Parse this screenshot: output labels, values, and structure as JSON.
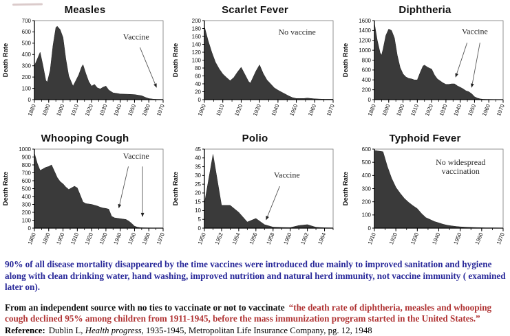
{
  "page": {
    "background": "#ffffff"
  },
  "decor": {
    "smudge_color": "rgba(175,140,140,0.45)"
  },
  "chart_colors": {
    "area_fill": "#3a3a3a",
    "axis": "#000000",
    "frame": "#777777",
    "annotation_text": "#2b2b2b",
    "arrow": "#555555"
  },
  "chart_data": [
    {
      "id": "measles",
      "type": "area",
      "title": "Measles",
      "ylabel": "Death Rate",
      "ylim": [
        0,
        700
      ],
      "ytick_step": 100,
      "x_range": [
        1880,
        1970
      ],
      "x_ticks": [
        1880,
        1890,
        1900,
        1910,
        1920,
        1930,
        1940,
        1950,
        1960,
        1970
      ],
      "x_minor_step": 5,
      "points": [
        [
          1880,
          300
        ],
        [
          1882,
          360
        ],
        [
          1884,
          420
        ],
        [
          1886,
          300
        ],
        [
          1888,
          170
        ],
        [
          1889,
          155
        ],
        [
          1891,
          260
        ],
        [
          1893,
          480
        ],
        [
          1895,
          640
        ],
        [
          1896,
          650
        ],
        [
          1898,
          620
        ],
        [
          1900,
          550
        ],
        [
          1902,
          360
        ],
        [
          1904,
          210
        ],
        [
          1906,
          150
        ],
        [
          1907,
          120
        ],
        [
          1909,
          170
        ],
        [
          1911,
          220
        ],
        [
          1913,
          290
        ],
        [
          1914,
          310
        ],
        [
          1916,
          230
        ],
        [
          1918,
          160
        ],
        [
          1920,
          120
        ],
        [
          1922,
          135
        ],
        [
          1924,
          105
        ],
        [
          1926,
          95
        ],
        [
          1928,
          110
        ],
        [
          1930,
          120
        ],
        [
          1932,
          85
        ],
        [
          1935,
          60
        ],
        [
          1938,
          55
        ],
        [
          1940,
          50
        ],
        [
          1945,
          48
        ],
        [
          1950,
          45
        ],
        [
          1955,
          35
        ],
        [
          1958,
          18
        ],
        [
          1960,
          10
        ],
        [
          1963,
          5
        ],
        [
          1965,
          3
        ],
        [
          1970,
          2
        ]
      ],
      "annotation": {
        "lines": [
          "Vaccine"
        ],
        "x": 0.79,
        "y": 0.24,
        "arrows": [
          {
            "x1": 0.82,
            "y1": 0.34,
            "x2": 0.95,
            "y2": 0.85
          }
        ]
      }
    },
    {
      "id": "scarlet-fever",
      "type": "area",
      "title": "Scarlet Fever",
      "ylabel": "Death Rate",
      "ylim": [
        0,
        200
      ],
      "ytick_step": 20,
      "x_range": [
        1900,
        1970
      ],
      "x_ticks": [
        1900,
        1910,
        1920,
        1930,
        1940,
        1950,
        1960,
        1970
      ],
      "x_minor_step": 5,
      "points": [
        [
          1900,
          185
        ],
        [
          1902,
          150
        ],
        [
          1904,
          120
        ],
        [
          1906,
          95
        ],
        [
          1908,
          78
        ],
        [
          1910,
          65
        ],
        [
          1912,
          56
        ],
        [
          1914,
          48
        ],
        [
          1916,
          56
        ],
        [
          1918,
          70
        ],
        [
          1920,
          82
        ],
        [
          1922,
          64
        ],
        [
          1924,
          46
        ],
        [
          1925,
          42
        ],
        [
          1926,
          52
        ],
        [
          1928,
          72
        ],
        [
          1930,
          88
        ],
        [
          1932,
          66
        ],
        [
          1934,
          50
        ],
        [
          1936,
          40
        ],
        [
          1938,
          30
        ],
        [
          1940,
          24
        ],
        [
          1942,
          19
        ],
        [
          1944,
          14
        ],
        [
          1946,
          9
        ],
        [
          1948,
          5
        ],
        [
          1950,
          3
        ],
        [
          1952,
          3
        ],
        [
          1954,
          3
        ],
        [
          1956,
          4
        ],
        [
          1958,
          3
        ],
        [
          1960,
          2
        ],
        [
          1965,
          1
        ],
        [
          1970,
          1
        ]
      ],
      "annotation": {
        "lines": [
          "No vaccine"
        ],
        "x": 0.72,
        "y": 0.18,
        "arrows": []
      }
    },
    {
      "id": "diphtheria",
      "type": "area",
      "title": "Diphtheria",
      "ylabel": "Death Rate",
      "ylim": [
        0,
        1600
      ],
      "ytick_step": 200,
      "x_range": [
        1880,
        1970
      ],
      "x_ticks": [
        1880,
        1890,
        1900,
        1910,
        1920,
        1930,
        1940,
        1950,
        1960,
        1970
      ],
      "x_minor_step": 5,
      "points": [
        [
          1880,
          1550
        ],
        [
          1882,
          1200
        ],
        [
          1884,
          950
        ],
        [
          1885,
          900
        ],
        [
          1886,
          1020
        ],
        [
          1888,
          1300
        ],
        [
          1890,
          1430
        ],
        [
          1892,
          1400
        ],
        [
          1894,
          1250
        ],
        [
          1896,
          900
        ],
        [
          1898,
          650
        ],
        [
          1900,
          520
        ],
        [
          1902,
          460
        ],
        [
          1904,
          430
        ],
        [
          1906,
          420
        ],
        [
          1908,
          400
        ],
        [
          1910,
          400
        ],
        [
          1912,
          550
        ],
        [
          1914,
          680
        ],
        [
          1915,
          700
        ],
        [
          1917,
          660
        ],
        [
          1919,
          630
        ],
        [
          1920,
          620
        ],
        [
          1922,
          500
        ],
        [
          1924,
          420
        ],
        [
          1926,
          380
        ],
        [
          1928,
          340
        ],
        [
          1930,
          310
        ],
        [
          1932,
          310
        ],
        [
          1934,
          320
        ],
        [
          1936,
          320
        ],
        [
          1938,
          280
        ],
        [
          1940,
          250
        ],
        [
          1942,
          220
        ],
        [
          1944,
          180
        ],
        [
          1946,
          160
        ],
        [
          1948,
          120
        ],
        [
          1950,
          60
        ],
        [
          1952,
          30
        ],
        [
          1954,
          15
        ],
        [
          1956,
          8
        ],
        [
          1960,
          5
        ],
        [
          1965,
          3
        ],
        [
          1970,
          2
        ]
      ],
      "annotation": {
        "lines": [
          "Vaccine"
        ],
        "x": 0.78,
        "y": 0.17,
        "arrows": [
          {
            "x1": 0.72,
            "y1": 0.28,
            "x2": 0.63,
            "y2": 0.72
          },
          {
            "x1": 0.82,
            "y1": 0.28,
            "x2": 0.755,
            "y2": 0.85
          }
        ]
      }
    },
    {
      "id": "whooping-cough",
      "type": "area",
      "title": "Whooping Cough",
      "ylabel": "Death Rate",
      "ylim": [
        0,
        1000
      ],
      "ytick_step": 100,
      "x_range": [
        1880,
        1970
      ],
      "x_ticks": [
        1880,
        1890,
        1900,
        1910,
        1920,
        1930,
        1940,
        1950,
        1960,
        1970
      ],
      "x_minor_step": 5,
      "points": [
        [
          1880,
          950
        ],
        [
          1882,
          820
        ],
        [
          1884,
          730
        ],
        [
          1886,
          750
        ],
        [
          1888,
          770
        ],
        [
          1890,
          780
        ],
        [
          1892,
          800
        ],
        [
          1894,
          720
        ],
        [
          1896,
          640
        ],
        [
          1898,
          590
        ],
        [
          1900,
          560
        ],
        [
          1902,
          520
        ],
        [
          1904,
          490
        ],
        [
          1906,
          510
        ],
        [
          1908,
          530
        ],
        [
          1910,
          510
        ],
        [
          1912,
          420
        ],
        [
          1914,
          330
        ],
        [
          1916,
          310
        ],
        [
          1918,
          305
        ],
        [
          1920,
          300
        ],
        [
          1922,
          290
        ],
        [
          1924,
          280
        ],
        [
          1926,
          265
        ],
        [
          1928,
          255
        ],
        [
          1930,
          250
        ],
        [
          1932,
          240
        ],
        [
          1934,
          150
        ],
        [
          1936,
          130
        ],
        [
          1938,
          125
        ],
        [
          1940,
          120
        ],
        [
          1942,
          115
        ],
        [
          1944,
          110
        ],
        [
          1946,
          90
        ],
        [
          1948,
          60
        ],
        [
          1950,
          25
        ],
        [
          1952,
          12
        ],
        [
          1954,
          6
        ],
        [
          1956,
          4
        ],
        [
          1960,
          3
        ],
        [
          1965,
          2
        ],
        [
          1970,
          1
        ]
      ],
      "annotation": {
        "lines": [
          "Vaccine"
        ],
        "x": 0.79,
        "y": 0.12,
        "arrows": [
          {
            "x1": 0.73,
            "y1": 0.22,
            "x2": 0.655,
            "y2": 0.75
          },
          {
            "x1": 0.84,
            "y1": 0.22,
            "x2": 0.84,
            "y2": 0.86
          }
        ]
      }
    },
    {
      "id": "polio",
      "type": "area",
      "title": "Polio",
      "ylabel": "Death Rate",
      "ylim": [
        0,
        45
      ],
      "ytick_step": 5,
      "x_range": [
        1950,
        1965
      ],
      "x_ticks": [
        1950,
        1952,
        1954,
        1956,
        1958,
        1960,
        1962,
        1964
      ],
      "x_minor_step": 1,
      "points": [
        [
          1950,
          14
        ],
        [
          1951,
          42
        ],
        [
          1952,
          13
        ],
        [
          1953,
          13
        ],
        [
          1954,
          9
        ],
        [
          1955,
          3.5
        ],
        [
          1956,
          5.5
        ],
        [
          1957,
          2
        ],
        [
          1958,
          0.6
        ],
        [
          1959,
          0.4
        ],
        [
          1960,
          0.3
        ],
        [
          1961,
          1.5
        ],
        [
          1962,
          2
        ],
        [
          1963,
          0.5
        ],
        [
          1964,
          0.2
        ],
        [
          1965,
          0.1
        ]
      ],
      "annotation": {
        "lines": [
          "Vaccine"
        ],
        "x": 0.64,
        "y": 0.36,
        "arrows": [
          {
            "x1": 0.585,
            "y1": 0.47,
            "x2": 0.478,
            "y2": 0.9
          }
        ]
      }
    },
    {
      "id": "typhoid-fever",
      "type": "area",
      "title": "Typhoid Fever",
      "ylabel": "Death Rate",
      "ylim": [
        0,
        600
      ],
      "ytick_step": 100,
      "x_range": [
        1910,
        1970
      ],
      "x_ticks": [
        1910,
        1920,
        1930,
        1940,
        1950,
        1960,
        1970
      ],
      "x_minor_step": 5,
      "points": [
        [
          1910,
          590
        ],
        [
          1912,
          585
        ],
        [
          1914,
          580
        ],
        [
          1916,
          470
        ],
        [
          1918,
          380
        ],
        [
          1920,
          310
        ],
        [
          1922,
          265
        ],
        [
          1924,
          225
        ],
        [
          1926,
          195
        ],
        [
          1928,
          170
        ],
        [
          1930,
          148
        ],
        [
          1932,
          110
        ],
        [
          1934,
          80
        ],
        [
          1936,
          65
        ],
        [
          1938,
          50
        ],
        [
          1940,
          40
        ],
        [
          1942,
          30
        ],
        [
          1944,
          22
        ],
        [
          1946,
          17
        ],
        [
          1948,
          13
        ],
        [
          1950,
          10
        ],
        [
          1952,
          8
        ],
        [
          1954,
          6
        ],
        [
          1956,
          5
        ],
        [
          1958,
          4
        ],
        [
          1960,
          3
        ],
        [
          1962,
          2
        ],
        [
          1965,
          2
        ],
        [
          1970,
          1
        ]
      ],
      "annotation": {
        "lines": [
          "No widespread",
          "vaccination"
        ],
        "x": 0.67,
        "y": 0.2,
        "arrows": []
      }
    }
  ],
  "footer": {
    "colors": {
      "navy": "#2a2a9a",
      "red": "#b03434",
      "black": "#111111"
    },
    "paragraph1": "90% of all disease mortality disappeared by the time vaccines were introduced due mainly to improved sanitation and hygiene along with clean drinking water, hand washing, improved nutrition and natural herd immunity, not vaccine immunity ( examined later on).",
    "paragraph2_black": "From an independent source with no ties to vaccinate or not to vaccinate",
    "paragraph2_red": "“the death rate of diphtheria, measles and whooping cough declined 95% among children from 1911-1945, before the mass immunization program started in the United States.”",
    "reference_label": "Reference:",
    "reference_pre_italic": "Dublin L,",
    "reference_italic": "Health progress,",
    "reference_post_italic": "1935-1945, Metropolitan Life Insurance Company, pg. 12, 1948"
  }
}
